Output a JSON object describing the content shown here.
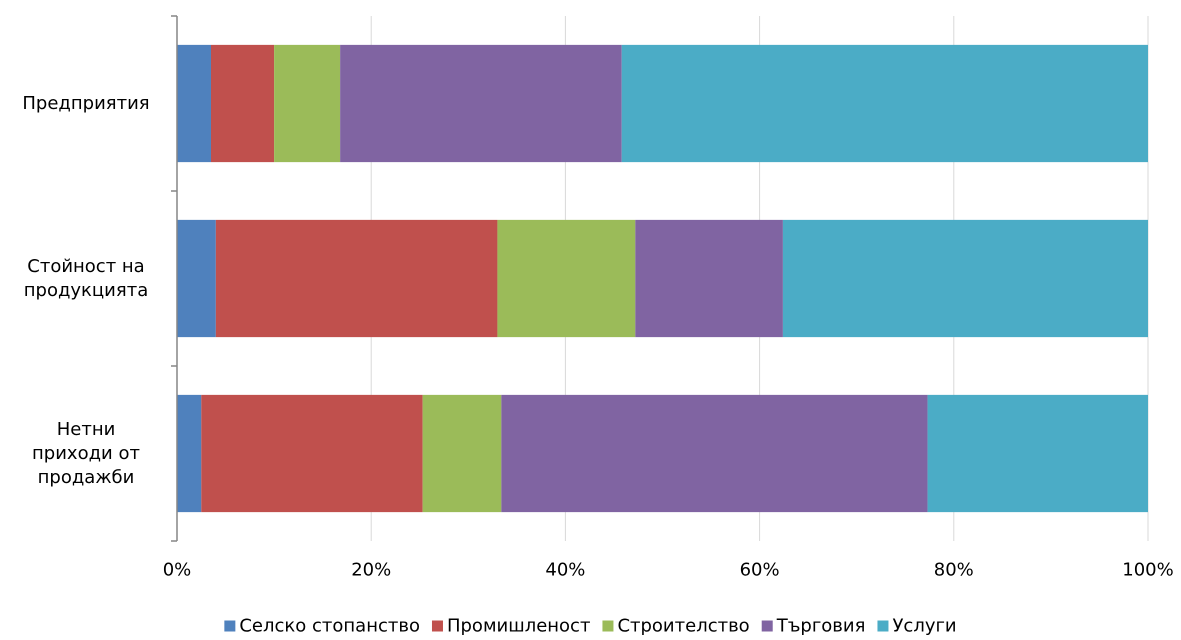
{
  "chart_data": {
    "type": "bar",
    "orientation": "horizontal",
    "stacked": "percent",
    "categories": [
      "Предприятия",
      "Стойност на продукцията",
      "Нетни приходи от продажби"
    ],
    "category_label_lines": [
      [
        "Предприятия"
      ],
      [
        "Стойност на",
        "продукцията"
      ],
      [
        "Нетни",
        "приходи от",
        "продажби"
      ]
    ],
    "series": [
      {
        "name": "Селско стопанство",
        "color": "#4F81BD",
        "values": [
          3.5,
          4.0,
          2.5
        ]
      },
      {
        "name": "Промишленост",
        "color": "#C0504D",
        "values": [
          6.5,
          29.0,
          22.8
        ]
      },
      {
        "name": "Строителство",
        "color": "#9BBB59",
        "values": [
          6.8,
          14.2,
          8.1
        ]
      },
      {
        "name": "Търговия",
        "color": "#8064A2",
        "values": [
          29.0,
          15.2,
          43.9
        ]
      },
      {
        "name": "Услуги",
        "color": "#4BACC6",
        "values": [
          54.2,
          37.6,
          22.7
        ]
      }
    ],
    "xlim": [
      0,
      100
    ],
    "xticks": [
      "0%",
      "20%",
      "40%",
      "60%",
      "80%",
      "100%"
    ],
    "grid": "vertical",
    "legend": "bottom"
  }
}
